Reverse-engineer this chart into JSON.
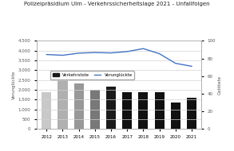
{
  "title": "Polizeipräsidium Ulm - Verkehrssicherheitslage 2021 - Unfallfolgen",
  "years": [
    2012,
    2013,
    2014,
    2015,
    2016,
    2017,
    2018,
    2019,
    2020,
    2021
  ],
  "verkehrstote": [
    42,
    55,
    52,
    44,
    48,
    42,
    42,
    42,
    30,
    35
  ],
  "bar_colors": [
    "#c8c8c8",
    "#b0b0b0",
    "#989898",
    "#787878",
    "#1a1a1a",
    "#111111",
    "#111111",
    "#111111",
    "#111111",
    "#111111"
  ],
  "verungluckte": [
    3800,
    3760,
    3870,
    3900,
    3880,
    3950,
    4100,
    3840,
    3350,
    3200
  ],
  "line_color": "#4472C4",
  "ylabel_left": "Verunglückte",
  "ylabel_right": "Getötete",
  "ylim_left": [
    0,
    4500
  ],
  "ylim_right": [
    0,
    100
  ],
  "yticks_left": [
    0,
    500,
    1000,
    1500,
    2000,
    2500,
    3000,
    3500,
    4000,
    4500
  ],
  "yticks_right": [
    0,
    20,
    40,
    60,
    80,
    100
  ],
  "legend_bar_label": "Verkehrstote",
  "legend_line_label": "Verunglückte",
  "background_color": "#ffffff",
  "grid_color": "#d3d3d3",
  "title_fontsize": 5.0,
  "tick_fontsize": 4.0,
  "ylabel_fontsize": 4.0
}
